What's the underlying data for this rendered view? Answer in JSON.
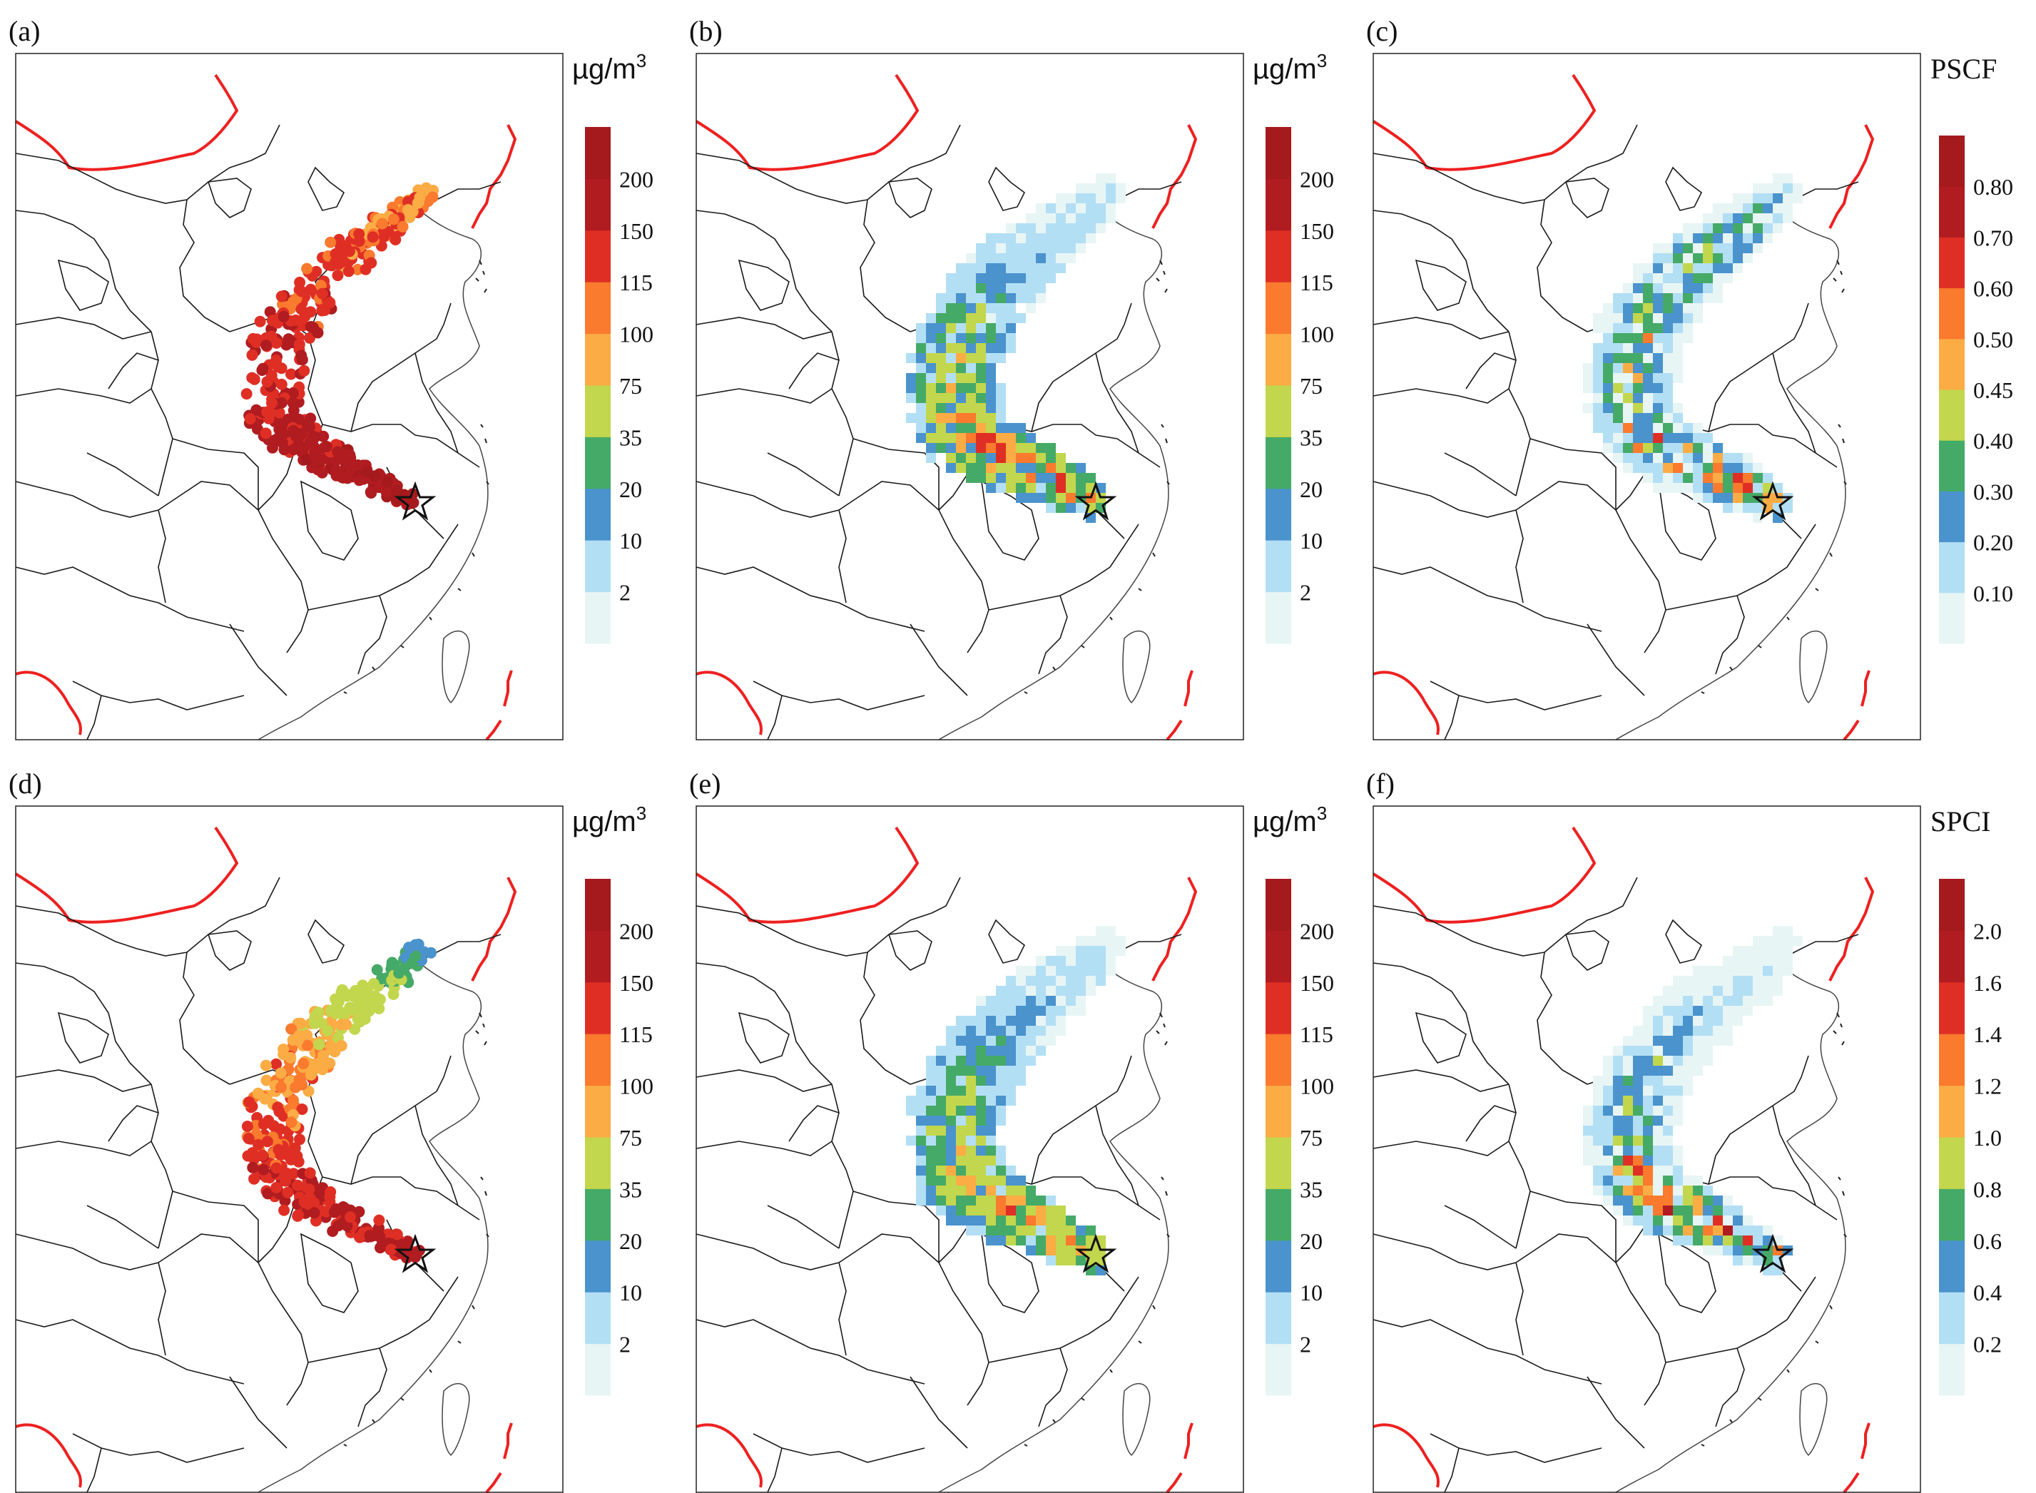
{
  "figure": {
    "panels": [
      {
        "id": "a",
        "label": "(a)",
        "kind": "dots",
        "colorbar_id": "conc",
        "header": "µg/m",
        "header_sup": "3",
        "values": [
          220,
          190,
          175,
          160,
          150,
          140,
          130,
          120,
          110,
          100
        ]
      },
      {
        "id": "b",
        "label": "(b)",
        "kind": "grid",
        "colorbar_id": "conc",
        "header": "µg/m",
        "header_sup": "3",
        "values": [
          120,
          160,
          180,
          140,
          100,
          60,
          30,
          15,
          10,
          5
        ]
      },
      {
        "id": "c",
        "label": "(c)",
        "kind": "grid",
        "colorbar_id": "pscf",
        "header": "PSCF",
        "header_sup": "",
        "values": [
          0.85,
          0.85,
          0.8,
          0.72,
          0.62,
          0.58,
          0.55,
          0.52,
          0.45,
          0.3
        ]
      },
      {
        "id": "d",
        "label": "(d)",
        "kind": "dots",
        "colorbar_id": "conc",
        "header": "µg/m",
        "header_sup": "3",
        "values": [
          160,
          170,
          155,
          140,
          120,
          105,
          90,
          60,
          30,
          15
        ]
      },
      {
        "id": "e",
        "label": "(e)",
        "kind": "grid",
        "colorbar_id": "conc",
        "header": "µg/m",
        "header_sup": "3",
        "values": [
          150,
          140,
          125,
          110,
          80,
          45,
          30,
          15,
          10,
          5
        ]
      },
      {
        "id": "f",
        "label": "(f)",
        "kind": "grid",
        "colorbar_id": "spci",
        "header": "SPCI",
        "header_sup": "",
        "values": [
          2.0,
          2.0,
          1.9,
          1.7,
          1.2,
          0.9,
          0.7,
          0.5,
          0.3,
          0.2
        ]
      }
    ]
  },
  "colorbars": {
    "conc": {
      "ticks": [
        "2",
        "10",
        "20",
        "35",
        "75",
        "100",
        "115",
        "150",
        "200"
      ]
    },
    "pscf": {
      "ticks": [
        "0.10",
        "0.20",
        "0.30",
        "0.40",
        "0.45",
        "0.50",
        "0.60",
        "0.70",
        "0.80"
      ]
    },
    "spci": {
      "ticks": [
        "0.2",
        "0.4",
        "0.6",
        "0.8",
        "1.0",
        "1.2",
        "1.4",
        "1.6",
        "2.0"
      ]
    }
  },
  "palette": [
    "#e8f5f5",
    "#b3dff5",
    "#4a93cd",
    "#45aa67",
    "#c2d74d",
    "#fbac45",
    "#fa7a2e",
    "#df2f25",
    "#b01c20",
    "#a51a1d"
  ],
  "receptor_marker": "star-icon"
}
